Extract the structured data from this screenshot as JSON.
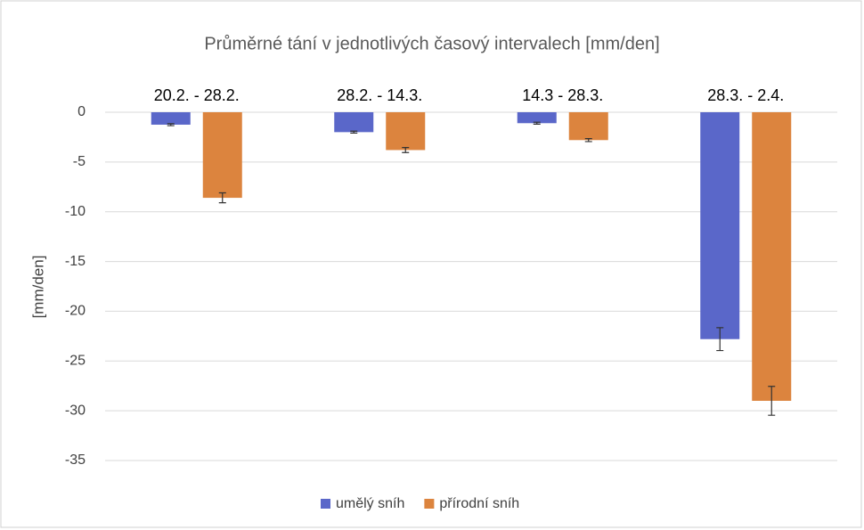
{
  "chart_data": {
    "type": "bar",
    "title": "Průměrné tání v jednotlivých časový intervalech [mm/den]",
    "y_label": "[mm/den]",
    "categories": [
      "20.2. - 28.2.",
      "28.2. - 14.3.",
      "14.3 - 28.3.",
      "28.3. - 2.4."
    ],
    "series": [
      {
        "name": "umělý sníh",
        "color": "#5a67c9",
        "values": [
          -1.25,
          -2.0,
          -1.1,
          -22.8
        ],
        "errors": [
          0.1,
          0.1,
          0.1,
          1.15
        ]
      },
      {
        "name": "přírodní sníh",
        "color": "#dc843e",
        "values": [
          -8.6,
          -3.8,
          -2.8,
          -29.0
        ],
        "errors": [
          0.5,
          0.25,
          0.15,
          1.45
        ]
      }
    ],
    "ylim": [
      -35,
      0
    ],
    "yticks": [
      0,
      -5,
      -10,
      -15,
      -20,
      -25,
      -30,
      -35
    ],
    "grid": true,
    "legend": "bottom"
  }
}
